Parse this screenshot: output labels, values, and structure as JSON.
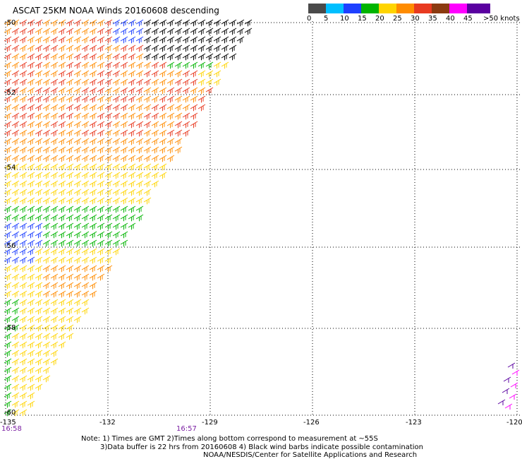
{
  "title": "ASCAT 25KM NOAA Winds 20160608 descending",
  "legend": {
    "unit_label": ">50 knots",
    "bins": [
      {
        "from": 0,
        "to": 5,
        "color": "#4a4a4a"
      },
      {
        "from": 5,
        "to": 10,
        "color": "#00bfff"
      },
      {
        "from": 10,
        "to": 15,
        "color": "#1e40ff"
      },
      {
        "from": 15,
        "to": 20,
        "color": "#00b400"
      },
      {
        "from": 20,
        "to": 25,
        "color": "#ffd400"
      },
      {
        "from": 25,
        "to": 30,
        "color": "#ff8c00"
      },
      {
        "from": 30,
        "to": 35,
        "color": "#e83a20"
      },
      {
        "from": 35,
        "to": 40,
        "color": "#8b3a10"
      },
      {
        "from": 40,
        "to": 45,
        "color": "#ff00ff"
      },
      {
        "from": 45,
        "to": 50,
        "color": "#5a00a0"
      }
    ],
    "tick_labels": [
      "0",
      "5",
      "10",
      "15",
      "20",
      "25",
      "30",
      "35",
      "40",
      "45",
      ">50 knots"
    ]
  },
  "axes": {
    "lon_labels": [
      "-135",
      "-132",
      "-129",
      "-126",
      "-123",
      "-120"
    ],
    "lat_labels": [
      "-50",
      "-52",
      "-54",
      "-56",
      "-58",
      "-60"
    ]
  },
  "pass_times": [
    "16:58",
    "16:57"
  ],
  "notes": [
    "Note: 1) Times are GMT 2)Times along bottom correspond to measurement at ~55S",
    "3)Data buffer is 22 hrs from 20160608 4) Black wind barbs indicate possible contamination",
    "NOAA/NESDIS/Center for Satellite Applications and Research"
  ]
}
